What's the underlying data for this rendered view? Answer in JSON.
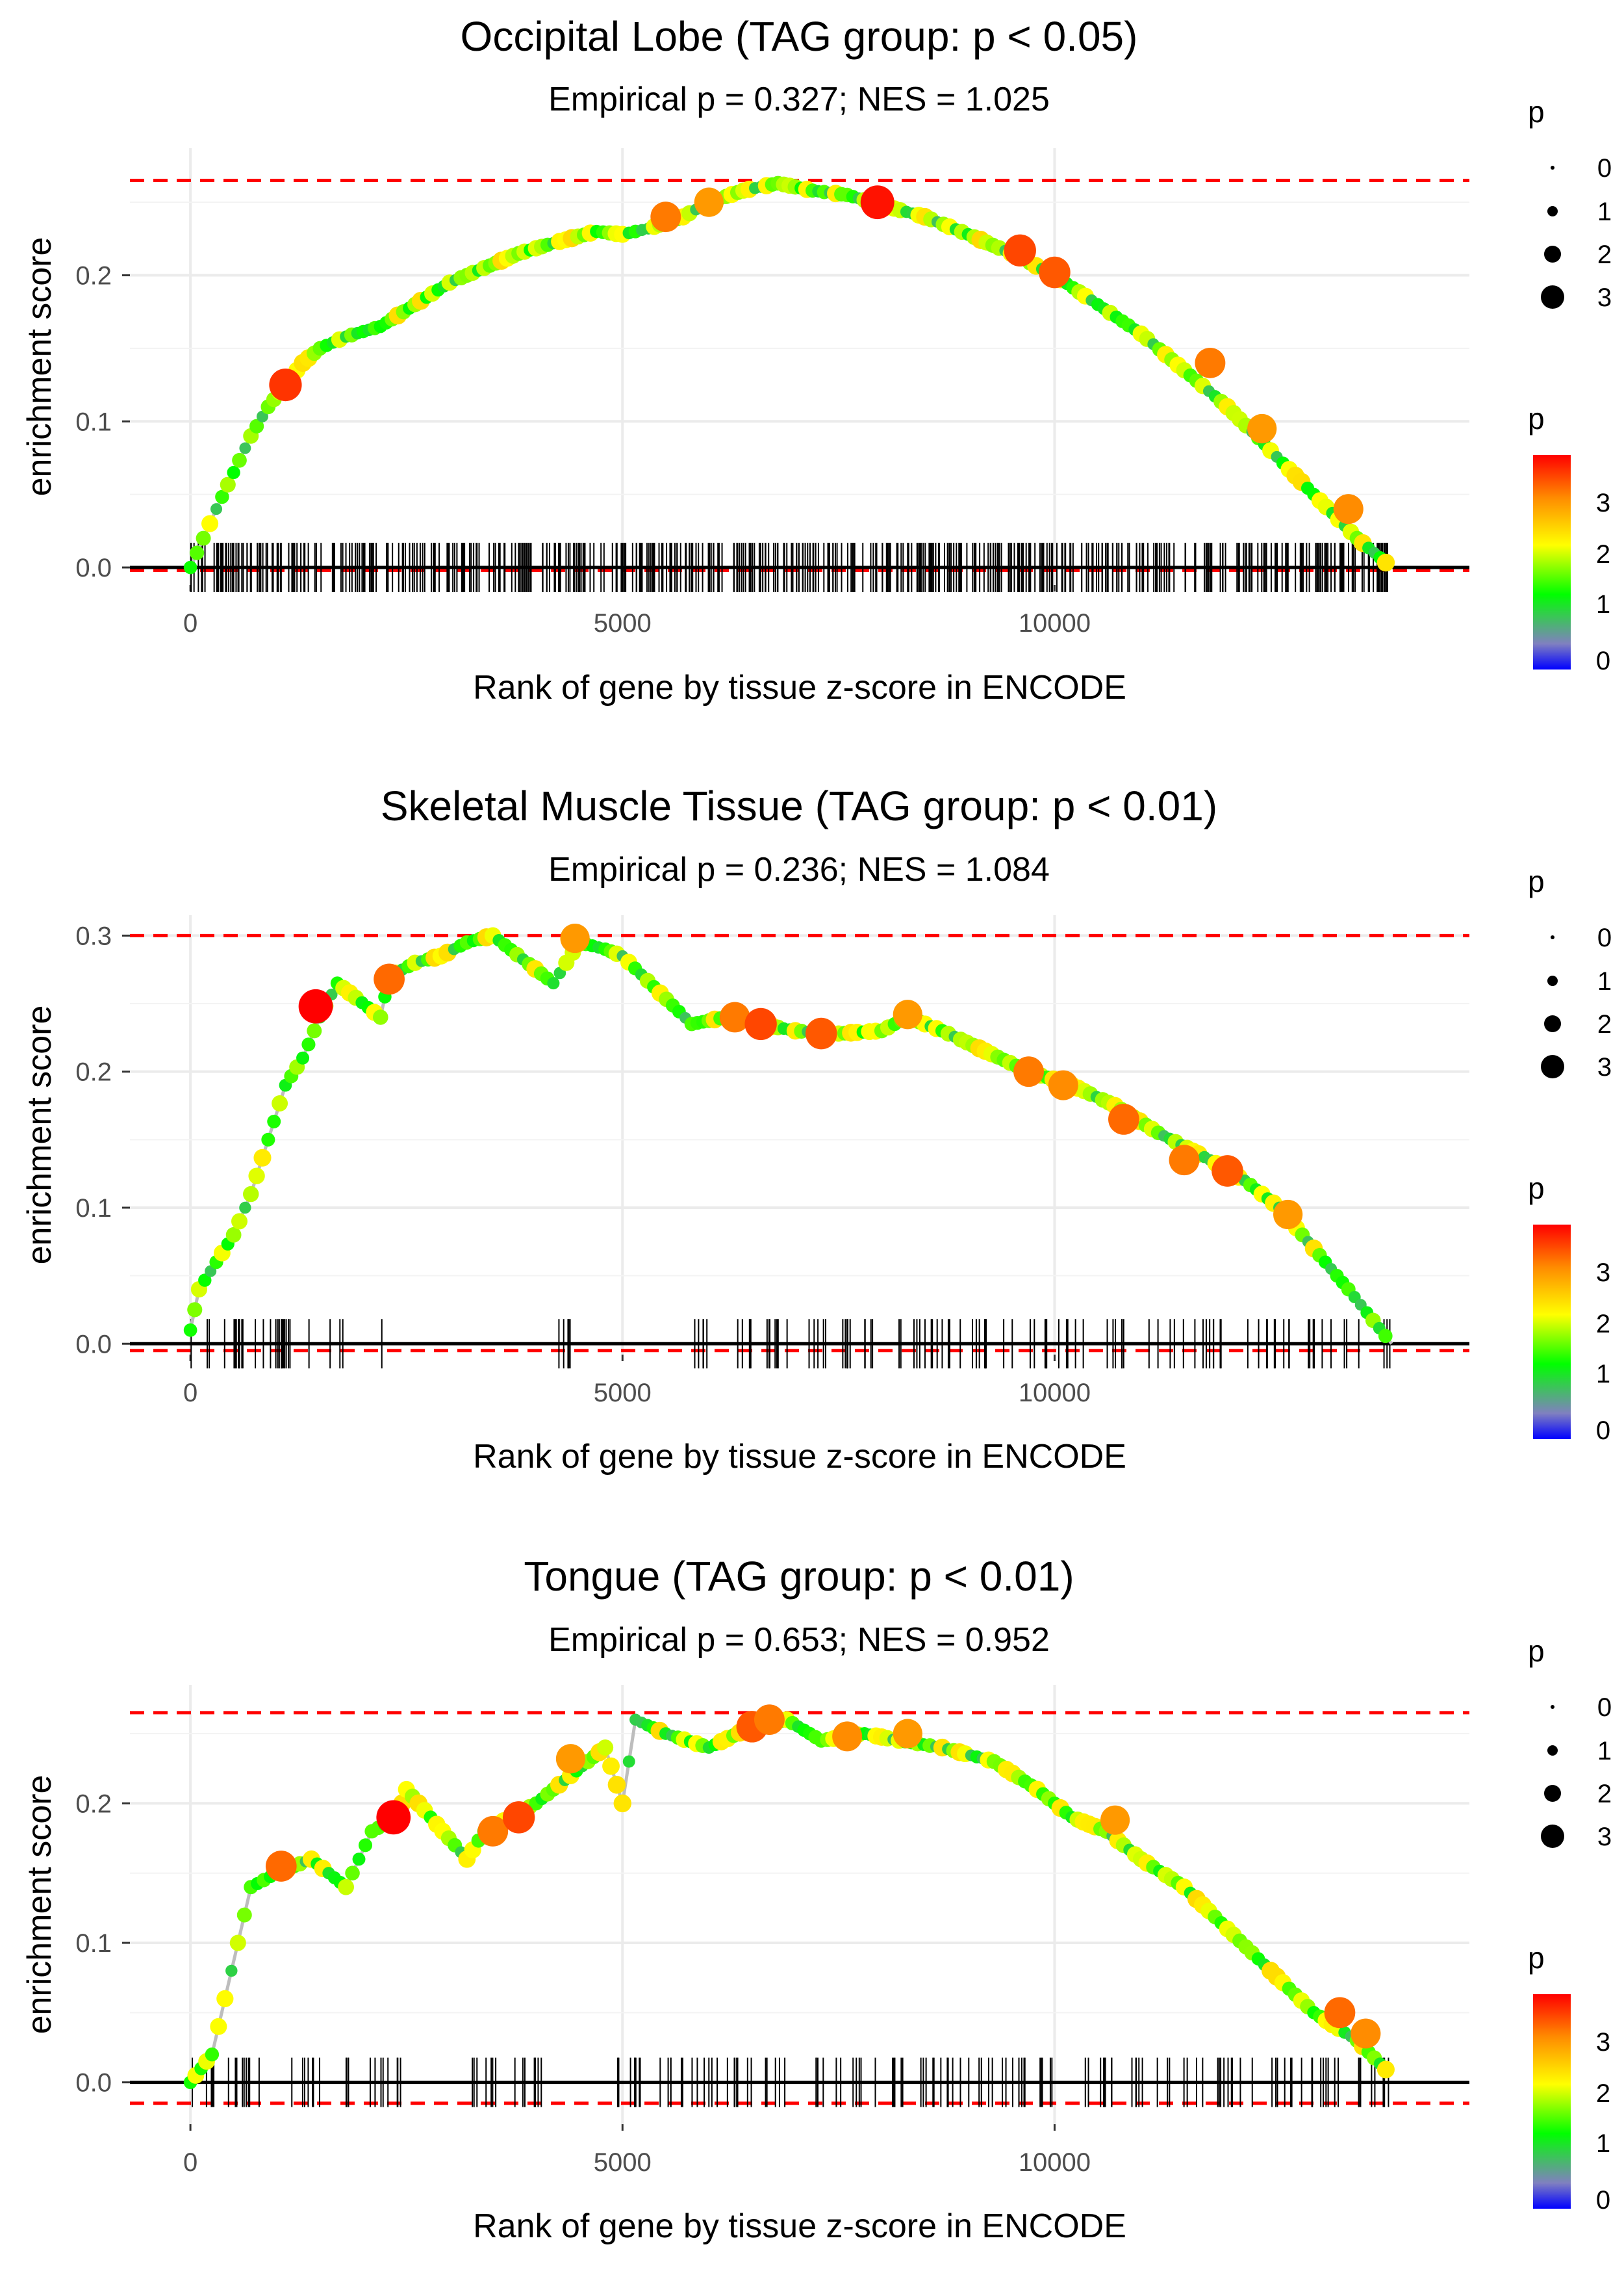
{
  "figure": {
    "xlabel": "Rank of gene by tissue z-score in ENCODE",
    "ylabel": "enrichment score",
    "legend_size_title": "p",
    "legend_color_title": "p",
    "size_legend_labels": [
      "0",
      "1",
      "2",
      "3"
    ],
    "color_legend_labels": [
      "3",
      "2",
      "1",
      "0"
    ],
    "colors": {
      "dashed_line": "#ff0000",
      "zero_line": "#000000",
      "curve": "#bdbdbd",
      "grid": "#ebebeb",
      "gradient": [
        "#0000ff",
        "#8080c0",
        "#00ff00",
        "#ffff00",
        "#ff8c00",
        "#ff0000"
      ]
    }
  },
  "chart_data": [
    {
      "type": "line",
      "title": "Occipital Lobe (TAG group: p < 0.05)",
      "subtitle": "Empirical p = 0.327; NES = 1.025",
      "xlabel": "Rank of gene by tissue z-score in ENCODE",
      "ylabel": "enrichment score",
      "xlim": [
        -700,
        14800
      ],
      "ylim": [
        -0.012,
        0.287
      ],
      "xticks": [
        0,
        5000,
        10000
      ],
      "xtick_labels": [
        "0",
        "5000",
        "10000"
      ],
      "yticks": [
        0.0,
        0.1,
        0.2
      ],
      "ytick_labels": [
        "0.0",
        "0.1",
        "0.2"
      ],
      "max_es": 0.265,
      "min_es": -0.002,
      "curve": {
        "x": [
          0,
          150,
          300,
          500,
          700,
          900,
          1100,
          1300,
          1500,
          1800,
          2200,
          2600,
          3000,
          3400,
          3800,
          4200,
          4700,
          5000,
          5300,
          5700,
          6000,
          6400,
          6800,
          7200,
          7600,
          8000,
          8500,
          9000,
          9500,
          10000,
          10500,
          11000,
          11500,
          12000,
          12500,
          13000,
          13500,
          13900
        ],
        "y": [
          0.0,
          0.02,
          0.04,
          0.065,
          0.09,
          0.11,
          0.125,
          0.14,
          0.15,
          0.158,
          0.165,
          0.18,
          0.195,
          0.205,
          0.215,
          0.222,
          0.23,
          0.228,
          0.232,
          0.24,
          0.25,
          0.258,
          0.263,
          0.258,
          0.255,
          0.248,
          0.24,
          0.228,
          0.215,
          0.2,
          0.18,
          0.16,
          0.135,
          0.11,
          0.08,
          0.05,
          0.02,
          0.0
        ]
      },
      "rug_density": 520,
      "rug_seed": 11,
      "highlight_points": [
        [
          1100,
          0.125,
          3.6
        ],
        [
          5500,
          0.24,
          3.2
        ],
        [
          6000,
          0.25,
          3.0
        ],
        [
          7950,
          0.25,
          3.8
        ],
        [
          9600,
          0.217,
          3.5
        ],
        [
          10000,
          0.202,
          3.4
        ],
        [
          11800,
          0.14,
          3.2
        ],
        [
          12400,
          0.095,
          3.0
        ],
        [
          13400,
          0.04,
          3.1
        ]
      ]
    },
    {
      "type": "line",
      "title": "Skeletal Muscle Tissue (TAG group: p < 0.01)",
      "subtitle": "Empirical p = 0.236; NES = 1.084",
      "xlabel": "Rank of gene by tissue z-score in ENCODE",
      "ylabel": "enrichment score",
      "xlim": [
        -700,
        14800
      ],
      "ylim": [
        -0.008,
        0.315
      ],
      "xticks": [
        0,
        5000,
        10000
      ],
      "xtick_labels": [
        "0",
        "5000",
        "10000"
      ],
      "yticks": [
        0.0,
        0.1,
        0.2,
        0.3
      ],
      "ytick_labels": [
        "0.0",
        "0.1",
        "0.2",
        "0.3"
      ],
      "max_es": 0.3,
      "min_es": -0.005,
      "curve": {
        "x": [
          0,
          100,
          300,
          500,
          700,
          900,
          1100,
          1300,
          1500,
          1700,
          2200,
          2300,
          2600,
          2900,
          3200,
          3500,
          4200,
          4500,
          4800,
          5000,
          5800,
          6200,
          6600,
          7000,
          7500,
          8000,
          8300,
          8700,
          9200,
          9700,
          10200,
          10700,
          11200,
          11800,
          12200,
          12600,
          13000,
          13400,
          13900
        ],
        "y": [
          0.01,
          0.04,
          0.06,
          0.08,
          0.11,
          0.15,
          0.19,
          0.21,
          0.24,
          0.265,
          0.24,
          0.27,
          0.28,
          0.285,
          0.295,
          0.3,
          0.265,
          0.295,
          0.29,
          0.285,
          0.235,
          0.24,
          0.235,
          0.23,
          0.228,
          0.23,
          0.24,
          0.23,
          0.215,
          0.2,
          0.19,
          0.175,
          0.155,
          0.135,
          0.12,
          0.1,
          0.07,
          0.04,
          0.0
        ]
      },
      "rug_density": 180,
      "rug_seed": 23,
      "rug_gaps": [
        [
          1800,
          2200
        ],
        [
          2400,
          4200
        ],
        [
          4500,
          5800
        ]
      ],
      "highlight_points": [
        [
          1450,
          0.248,
          3.9
        ],
        [
          2300,
          0.268,
          3.3
        ],
        [
          4450,
          0.298,
          3.0
        ],
        [
          6300,
          0.24,
          3.2
        ],
        [
          6600,
          0.235,
          3.5
        ],
        [
          7300,
          0.228,
          3.4
        ],
        [
          8300,
          0.242,
          3.0
        ],
        [
          9700,
          0.2,
          3.2
        ],
        [
          10100,
          0.19,
          3.1
        ],
        [
          10800,
          0.165,
          3.3
        ],
        [
          11500,
          0.135,
          3.2
        ],
        [
          12000,
          0.127,
          3.4
        ],
        [
          12700,
          0.095,
          3.0
        ]
      ]
    },
    {
      "type": "line",
      "title": "Tongue (TAG group: p < 0.01)",
      "subtitle": "Empirical p = 0.653; NES = 0.952",
      "xlabel": "Rank of gene by tissue z-score in ENCODE",
      "ylabel": "enrichment score",
      "xlim": [
        -700,
        14800
      ],
      "ylim": [
        -0.03,
        0.285
      ],
      "xticks": [
        0,
        5000,
        10000
      ],
      "xtick_labels": [
        "0",
        "5000",
        "10000"
      ],
      "yticks": [
        0.0,
        0.1,
        0.2
      ],
      "ytick_labels": [
        "0.0",
        "0.1",
        "0.2"
      ],
      "max_es": 0.265,
      "min_es": -0.015,
      "curve": {
        "x": [
          0,
          250,
          400,
          550,
          700,
          1000,
          1400,
          1800,
          2100,
          2400,
          2500,
          3200,
          3400,
          3700,
          4000,
          4400,
          4800,
          5000,
          5150,
          5500,
          6000,
          6500,
          6900,
          7300,
          7800,
          8200,
          8700,
          9300,
          9800,
          10200,
          10600,
          11000,
          11500,
          12000,
          12500,
          13000,
          13500,
          13900
        ],
        "y": [
          0.0,
          0.02,
          0.06,
          0.1,
          0.14,
          0.15,
          0.16,
          0.14,
          0.18,
          0.19,
          0.21,
          0.16,
          0.18,
          0.19,
          0.2,
          0.22,
          0.24,
          0.2,
          0.26,
          0.25,
          0.24,
          0.255,
          0.26,
          0.245,
          0.25,
          0.245,
          0.24,
          0.23,
          0.21,
          0.19,
          0.18,
          0.16,
          0.14,
          0.11,
          0.08,
          0.05,
          0.03,
          0.005
        ]
      },
      "rug_density": 210,
      "rug_seed": 37,
      "rug_gaps": [
        [
          800,
          1100
        ],
        [
          2600,
          3100
        ],
        [
          4100,
          4900
        ]
      ],
      "highlight_points": [
        [
          1050,
          0.155,
          3.3
        ],
        [
          2350,
          0.19,
          3.9
        ],
        [
          3500,
          0.18,
          3.2
        ],
        [
          3800,
          0.19,
          3.5
        ],
        [
          4400,
          0.232,
          3.0
        ],
        [
          6500,
          0.255,
          3.4
        ],
        [
          6700,
          0.26,
          3.2
        ],
        [
          7600,
          0.248,
          3.1
        ],
        [
          8300,
          0.25,
          3.0
        ],
        [
          10700,
          0.188,
          3.0
        ],
        [
          13300,
          0.05,
          3.3
        ],
        [
          13600,
          0.035,
          3.1
        ]
      ]
    }
  ]
}
